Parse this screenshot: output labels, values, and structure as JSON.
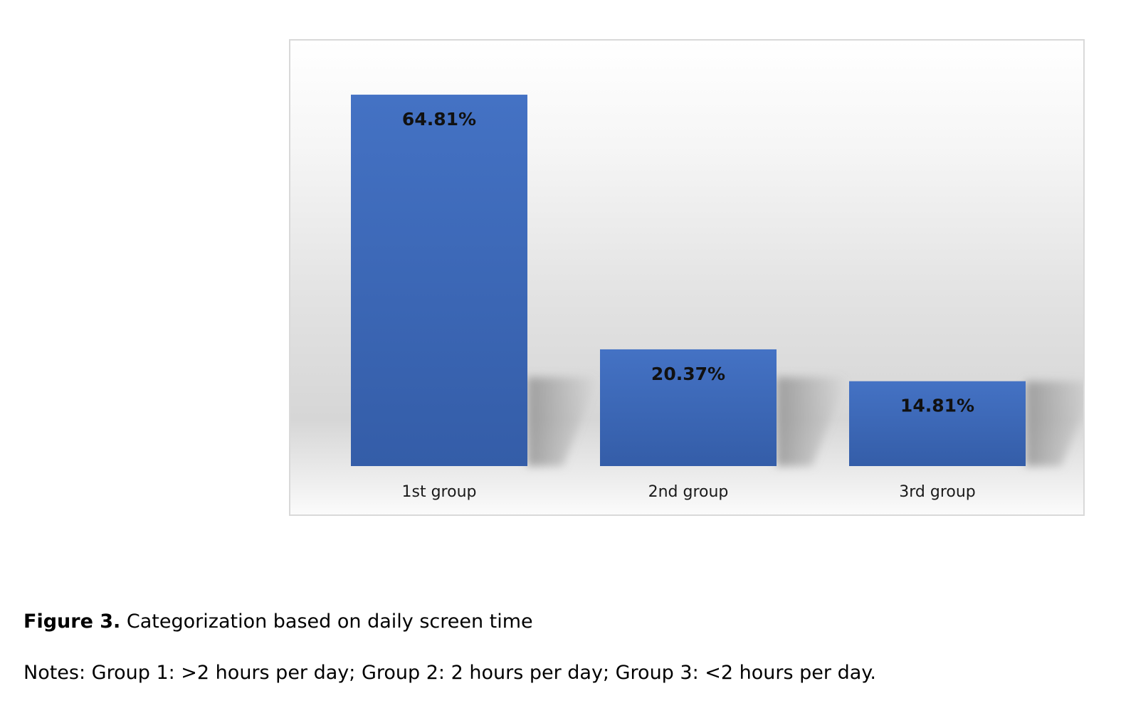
{
  "chart_data": {
    "type": "bar",
    "categories": [
      "1st group",
      "2nd group",
      "3rd group"
    ],
    "values": [
      64.81,
      20.37,
      14.81
    ],
    "value_labels": [
      "64.81%",
      "20.37%",
      "14.81%"
    ],
    "ylim": [
      0,
      75
    ],
    "grid": false,
    "legend": "none",
    "colors": {
      "bar_top": "#4472c4",
      "bar_bottom": "#345da8",
      "label": "#111111"
    }
  },
  "caption": {
    "figure_label": "Figure 3.",
    "text": " Categorization based on daily screen time"
  },
  "notes": {
    "text": "Notes: Group 1: >2 hours per day; Group 2: 2 hours per day; Group 3: <2 hours per day."
  }
}
